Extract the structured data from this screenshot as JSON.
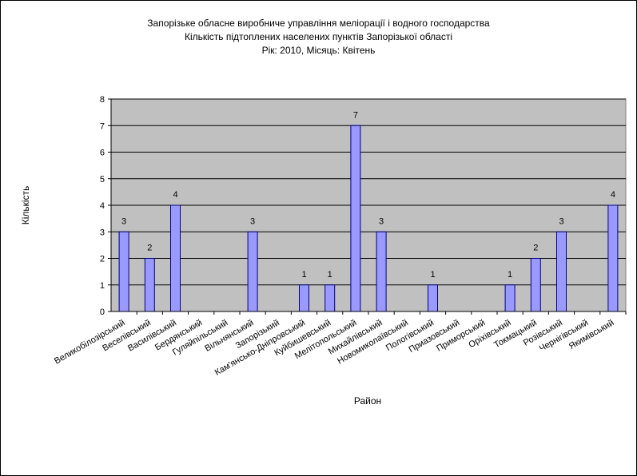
{
  "chart_data": {
    "type": "bar",
    "title_lines": [
      "Запорізьке обласне виробниче управління меліорації і водного господарства",
      "Кількість підтоплених населених пунктів Запорізької області",
      "Рік: 2010, Місяць: Квітень"
    ],
    "xlabel": "Район",
    "ylabel": "Кількість",
    "ylim": [
      0,
      8
    ],
    "yticks": [
      0,
      1,
      2,
      3,
      4,
      5,
      6,
      7,
      8
    ],
    "grid": true,
    "legend": "none",
    "categories": [
      "Великобілозірський",
      "Веселівський",
      "Василівський",
      "Бердянський",
      "Гуляйпільський",
      "Вільнянський",
      "Запорізький",
      "Кам'янсько-Дніпровський",
      "Куйбишевський",
      "Мелітопольський",
      "Михайлівський",
      "Новомиколаївський",
      "Пологівський",
      "Приазовський",
      "Приморський",
      "Оріхівський",
      "Токмацький",
      "Розівський",
      "Чернігівський",
      "Якимівський"
    ],
    "values": [
      3,
      2,
      4,
      null,
      null,
      3,
      null,
      1,
      1,
      7,
      3,
      null,
      1,
      null,
      null,
      1,
      2,
      3,
      null,
      4
    ],
    "colors": {
      "plot_background": "#c0c0c0",
      "bar_fill": "#9999ff",
      "bar_stroke": "#000080",
      "gridline": "#000000"
    }
  }
}
